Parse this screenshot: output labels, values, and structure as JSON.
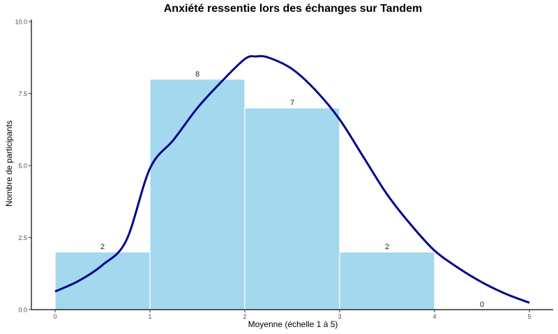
{
  "chart_data": {
    "type": "bar",
    "title": "Anxiété ressentie lors des échanges sur Tandem",
    "xlabel": "Moyenne (échelle 1 à 5)",
    "ylabel": "Nombre de participants",
    "bins": [
      [
        0,
        1
      ],
      [
        1,
        2
      ],
      [
        2,
        3
      ],
      [
        3,
        4
      ],
      [
        4,
        5
      ]
    ],
    "categories": [
      "0-1",
      "1-2",
      "2-3",
      "3-4",
      "4-5"
    ],
    "values": [
      2,
      8,
      7,
      2,
      0
    ],
    "bar_labels": [
      "2",
      "8",
      "7",
      "2",
      "0"
    ],
    "xlim": [
      0,
      5
    ],
    "ylim": [
      0,
      10
    ],
    "xticks": [
      "0",
      "1",
      "2",
      "3",
      "4",
      "5"
    ],
    "yticks": [
      "0.0",
      "2.5",
      "5.0",
      "7.5",
      "10.0"
    ],
    "grid": false,
    "overlay_curve": {
      "type": "normal_density_scaled",
      "points": [
        [
          0,
          0.63
        ],
        [
          0.25,
          1.0
        ],
        [
          0.5,
          1.55
        ],
        [
          0.75,
          2.4
        ],
        [
          1,
          4.9
        ],
        [
          1.25,
          5.9
        ],
        [
          1.5,
          7.0
        ],
        [
          1.75,
          7.9
        ],
        [
          2,
          8.7
        ],
        [
          2.12,
          8.79
        ],
        [
          2.25,
          8.75
        ],
        [
          2.5,
          8.35
        ],
        [
          2.75,
          7.6
        ],
        [
          3,
          6.6
        ],
        [
          3.25,
          5.3
        ],
        [
          3.5,
          4.0
        ],
        [
          3.75,
          2.95
        ],
        [
          4,
          2.05
        ],
        [
          4.25,
          1.45
        ],
        [
          4.5,
          0.95
        ],
        [
          4.75,
          0.55
        ],
        [
          5,
          0.24
        ]
      ]
    },
    "colors": {
      "bar": "#A3D8EE",
      "bar_edge": "#FFFFFF",
      "curve": "#00008B"
    }
  }
}
